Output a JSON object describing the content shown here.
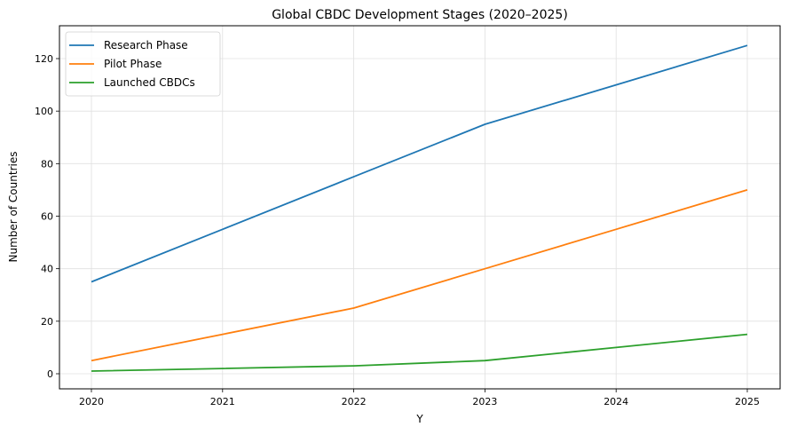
{
  "chart_data": {
    "type": "line",
    "title": "Global CBDC Development Stages (2020–2025)",
    "xlabel": "Y",
    "ylabel": "Number of Countries",
    "x": [
      2020,
      2021,
      2022,
      2023,
      2024,
      2025
    ],
    "x_tick_labels": [
      "2020",
      "2021",
      "2022",
      "2023",
      "2024",
      "2025"
    ],
    "y_ticks": [
      0,
      20,
      40,
      60,
      80,
      100,
      120
    ],
    "y_tick_labels": [
      "0",
      "20",
      "40",
      "60",
      "80",
      "100",
      "120"
    ],
    "xlim": [
      2019.76,
      2025.25
    ],
    "ylim": [
      -5.7,
      131
    ],
    "grid": true,
    "legend_position": "top-left",
    "series": [
      {
        "name": "Research Phase",
        "color": "#1f77b4",
        "values": [
          35,
          55,
          75,
          95,
          110,
          125
        ]
      },
      {
        "name": "Pilot Phase",
        "color": "#ff7f0e",
        "values": [
          5,
          15,
          25,
          40,
          55,
          70
        ]
      },
      {
        "name": "Launched CBDCs",
        "color": "#2ca02c",
        "values": [
          1,
          2,
          3,
          5,
          10,
          15
        ]
      }
    ]
  }
}
